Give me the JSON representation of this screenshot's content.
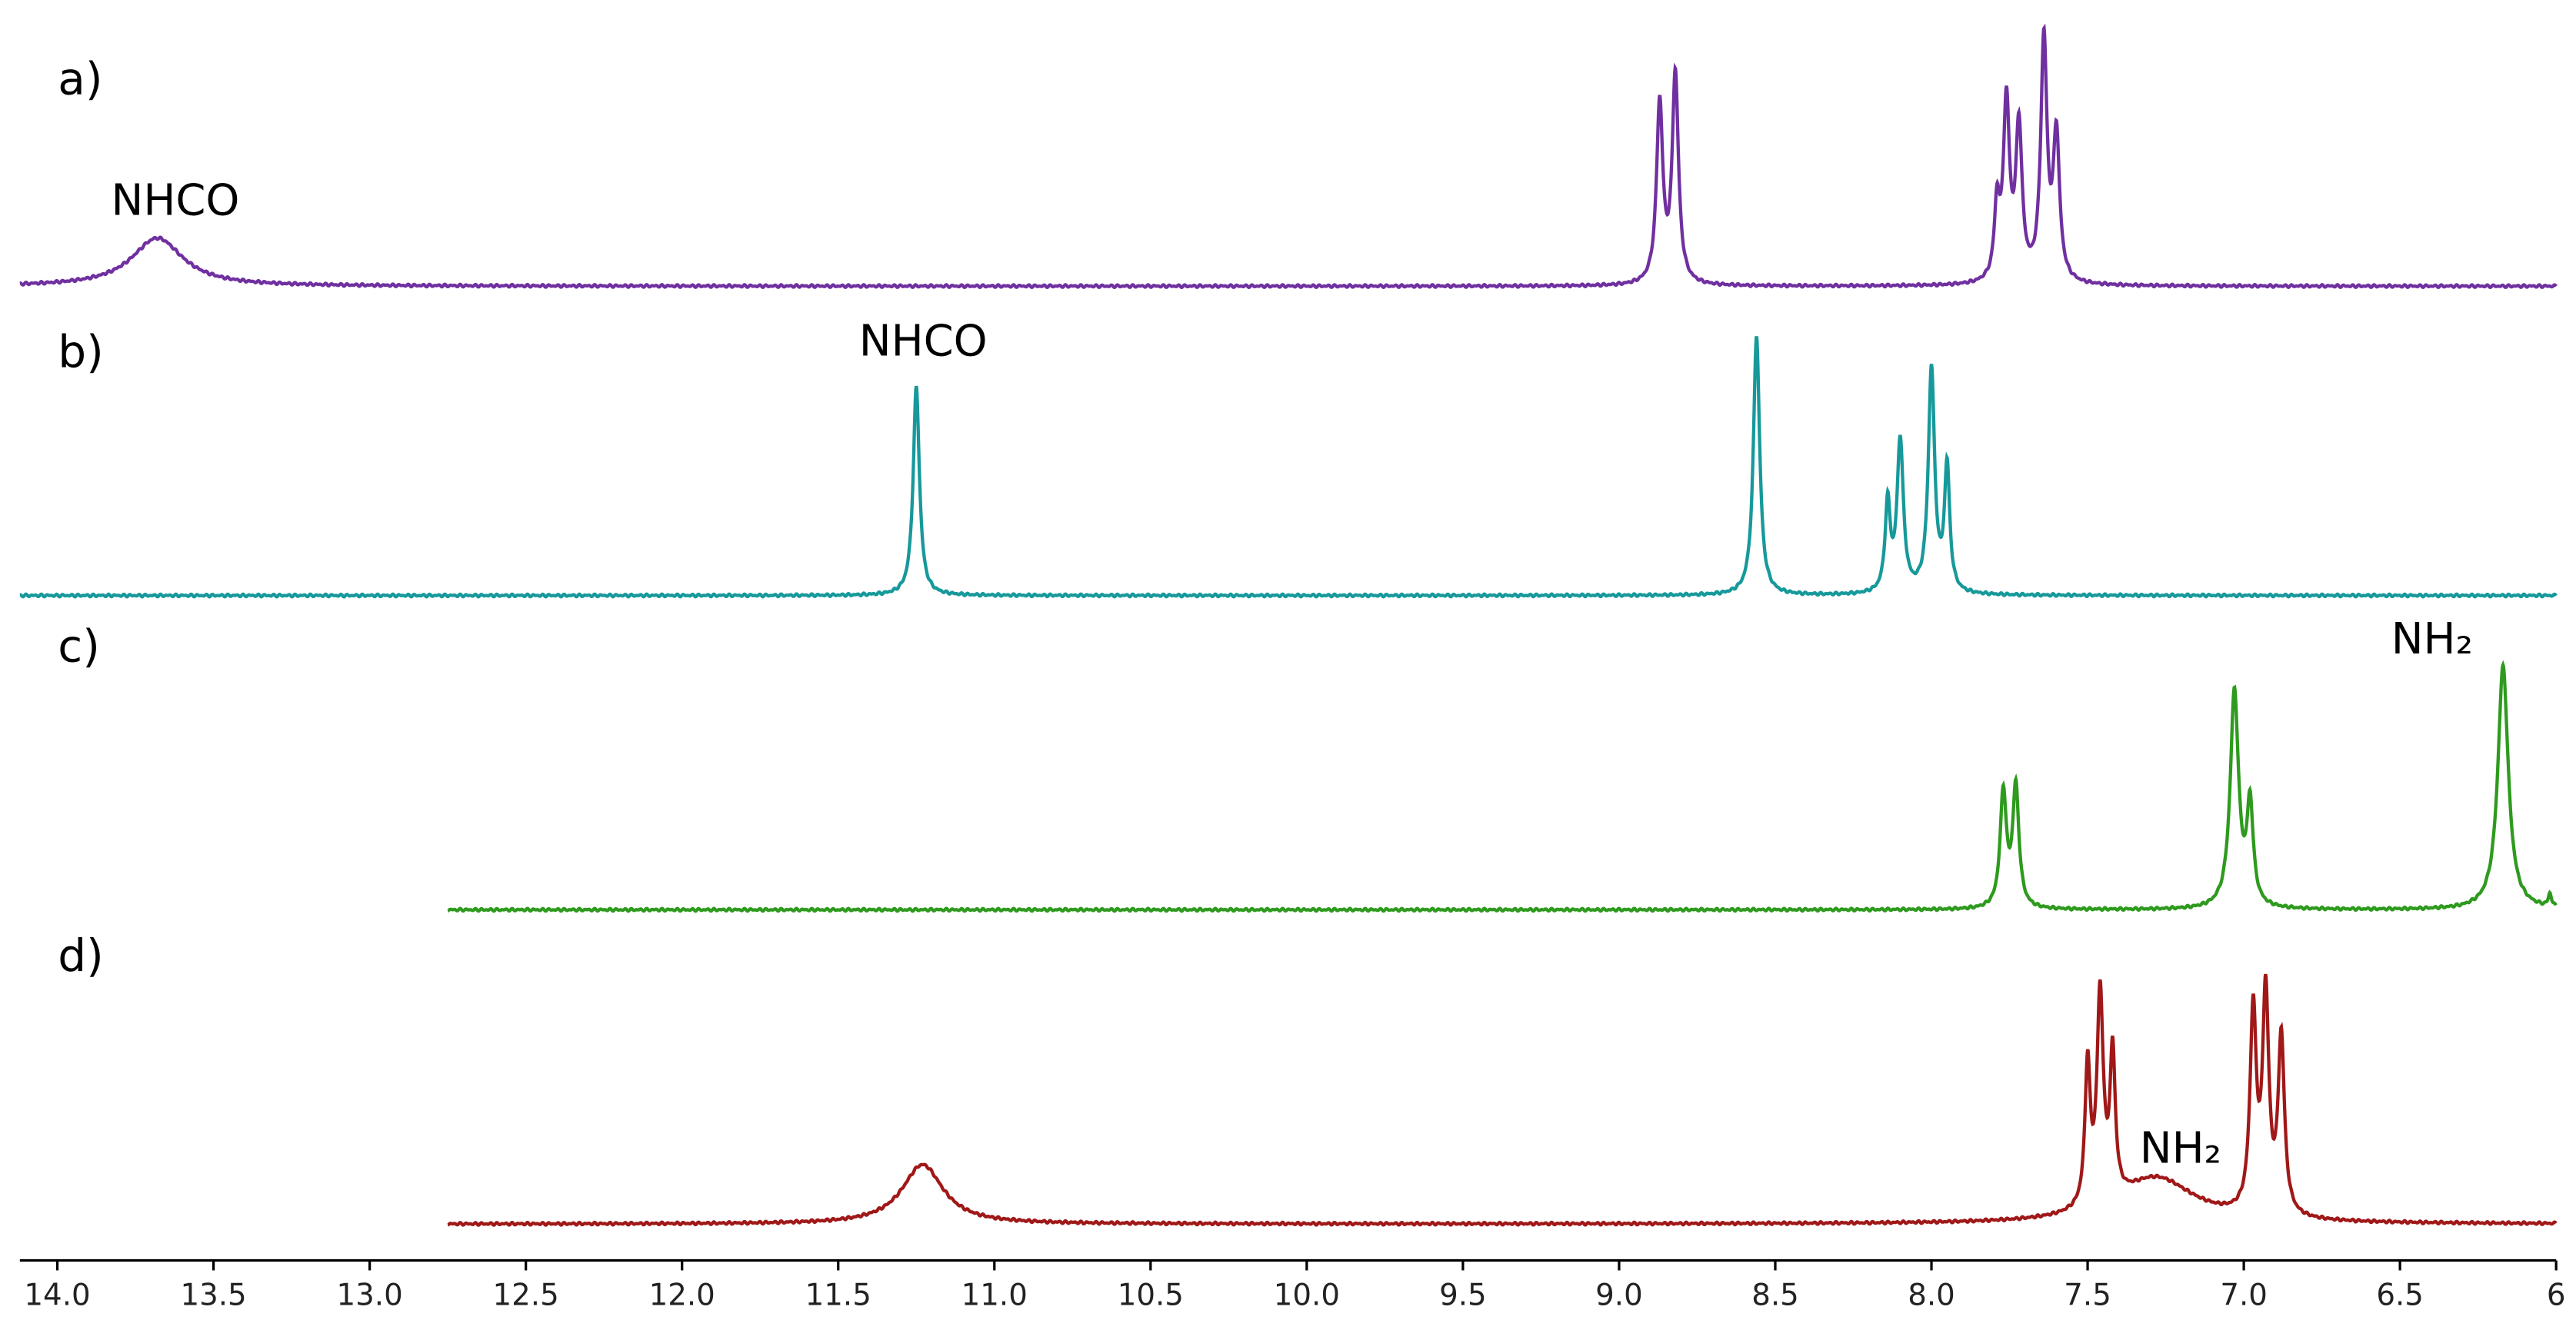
{
  "chart_data": {
    "type": "line",
    "xlim": [
      14.12,
      6
    ],
    "xticks": [
      {
        "value": 14,
        "label": "14.0"
      },
      13.5,
      {
        "value": 13,
        "label": "13.0"
      },
      12.5,
      {
        "value": 12,
        "label": "12.0"
      },
      11.5,
      {
        "value": 11,
        "label": "11.0"
      },
      10.5,
      {
        "value": 10,
        "label": "10.0"
      },
      9.5,
      {
        "value": 9,
        "label": "9.0"
      },
      8.5,
      {
        "value": 8,
        "label": "8.0"
      },
      7.5,
      {
        "value": 7,
        "label": "7.0"
      },
      6.5,
      6
    ],
    "ylim": [
      0,
      165
    ],
    "series": [
      {
        "name": "a)",
        "color": "#7030a0",
        "annotation": "NHCO",
        "xrange": [
          14.12,
          6
        ],
        "peaks": [
          13.68,
          8.87,
          8.82,
          7.79,
          7.76,
          7.72,
          7.64,
          7.6
        ],
        "heights": [
          30,
          112,
          130,
          45,
          110,
          95,
          150,
          90
        ],
        "widths": [
          0.1,
          0.012,
          0.012,
          0.01,
          0.012,
          0.012,
          0.012,
          0.012
        ]
      },
      {
        "name": "b)",
        "color": "#17999b",
        "annotation": "NHCO",
        "xrange": [
          14.12,
          6
        ],
        "peaks": [
          11.25,
          8.56,
          8.14,
          8.1,
          8.0,
          7.95
        ],
        "heights": [
          130,
          162,
          55,
          95,
          140,
          78
        ],
        "widths": [
          0.012,
          0.012,
          0.01,
          0.012,
          0.012,
          0.01
        ]
      },
      {
        "name": "c)",
        "color": "#2e9a1e",
        "annotation": "NH₂",
        "xrange": [
          12.75,
          6
        ],
        "peaks": [
          7.77,
          7.73,
          7.03,
          6.98,
          6.17,
          6.02
        ],
        "heights": [
          72,
          75,
          135,
          62,
          152,
          8
        ],
        "widths": [
          0.012,
          0.012,
          0.016,
          0.012,
          0.02,
          0.006
        ]
      },
      {
        "name": "d)",
        "color": "#a01818",
        "annotation": "NH₂",
        "xrange": [
          12.75,
          6
        ],
        "peaks": [
          11.23,
          7.5,
          7.46,
          7.42,
          7.28,
          6.97,
          6.93,
          6.88
        ],
        "heights": [
          37,
          88,
          130,
          90,
          28,
          125,
          135,
          110
        ],
        "widths": [
          0.08,
          0.01,
          0.012,
          0.01,
          0.15,
          0.012,
          0.012,
          0.012
        ]
      }
    ]
  }
}
